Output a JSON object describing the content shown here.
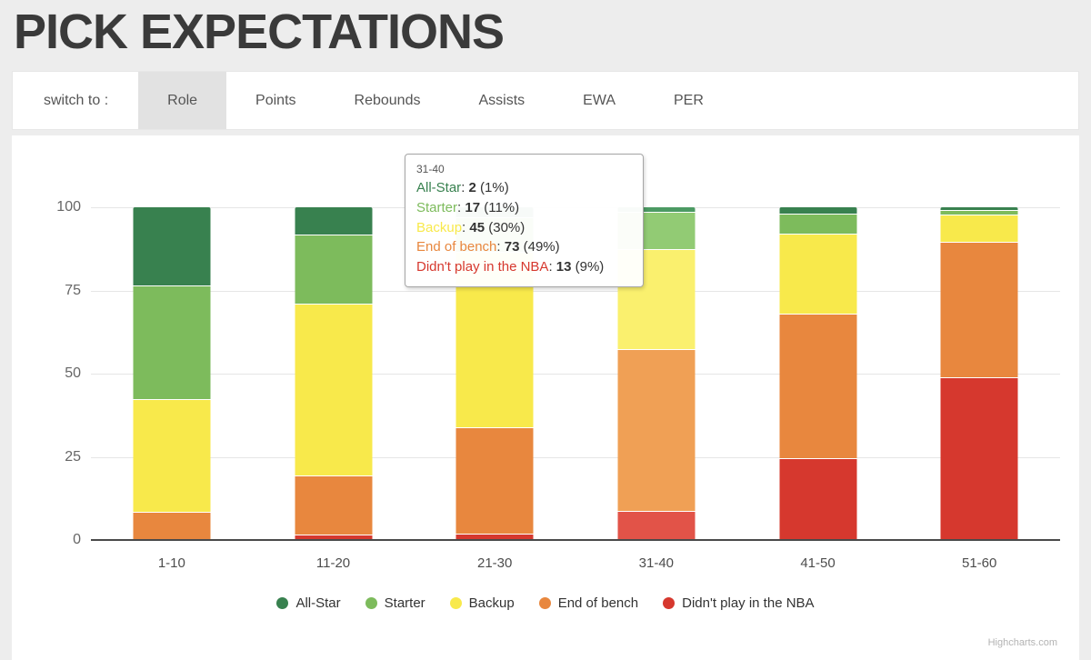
{
  "page": {
    "title": "PICK EXPECTATIONS"
  },
  "tabs": {
    "prefix_label": "switch to :",
    "items": [
      {
        "label": "Role",
        "active": true
      },
      {
        "label": "Points",
        "active": false
      },
      {
        "label": "Rebounds",
        "active": false
      },
      {
        "label": "Assists",
        "active": false
      },
      {
        "label": "EWA",
        "active": false
      },
      {
        "label": "PER",
        "active": false
      }
    ]
  },
  "chart_data": {
    "type": "bar",
    "stacking": "percent",
    "categories": [
      "1-10",
      "11-20",
      "21-30",
      "31-40",
      "41-50",
      "51-60"
    ],
    "series": [
      {
        "name": "All-Star",
        "color": "#38814F",
        "hover_color": "#4C9A63",
        "values": [
          23.5,
          8.2,
          3.0,
          1.3,
          1.9,
          0.9
        ]
      },
      {
        "name": "Starter",
        "color": "#7DBB5C",
        "hover_color": "#92CB74",
        "values": [
          34.1,
          20.8,
          10.4,
          11.3,
          6.1,
          1.4
        ]
      },
      {
        "name": "Backup",
        "color": "#F8E94B",
        "hover_color": "#FAF06E",
        "values": [
          33.8,
          51.6,
          52.6,
          30.0,
          24.1,
          8.1
        ]
      },
      {
        "name": "End of bench",
        "color": "#E8873E",
        "hover_color": "#F0A055",
        "values": [
          8.6,
          17.8,
          32.0,
          48.7,
          43.3,
          40.7
        ]
      },
      {
        "name": "Didn't play in the NBA",
        "color": "#D6382E",
        "hover_color": "#E25348",
        "values": [
          0,
          1.6,
          2.0,
          8.7,
          24.6,
          48.9
        ]
      }
    ],
    "hovered_category": "31-40",
    "xlabel": "",
    "ylabel": "",
    "ylim": [
      0,
      100
    ],
    "y_ticks": [
      0,
      25,
      50,
      75,
      100
    ],
    "grid": true,
    "legend_position": "bottom"
  },
  "tooltip": {
    "header": "31-40",
    "rows": [
      {
        "name": "All-Star",
        "value": "2",
        "pct": "(1%)"
      },
      {
        "name": "Starter",
        "value": "17",
        "pct": "(11%)"
      },
      {
        "name": "Backup",
        "value": "45",
        "pct": "(30%)"
      },
      {
        "name": "End of bench",
        "value": "73",
        "pct": "(49%)"
      },
      {
        "name": "Didn't play in the NBA",
        "value": "13",
        "pct": "(9%)"
      }
    ]
  },
  "credit": "Highcharts.com"
}
